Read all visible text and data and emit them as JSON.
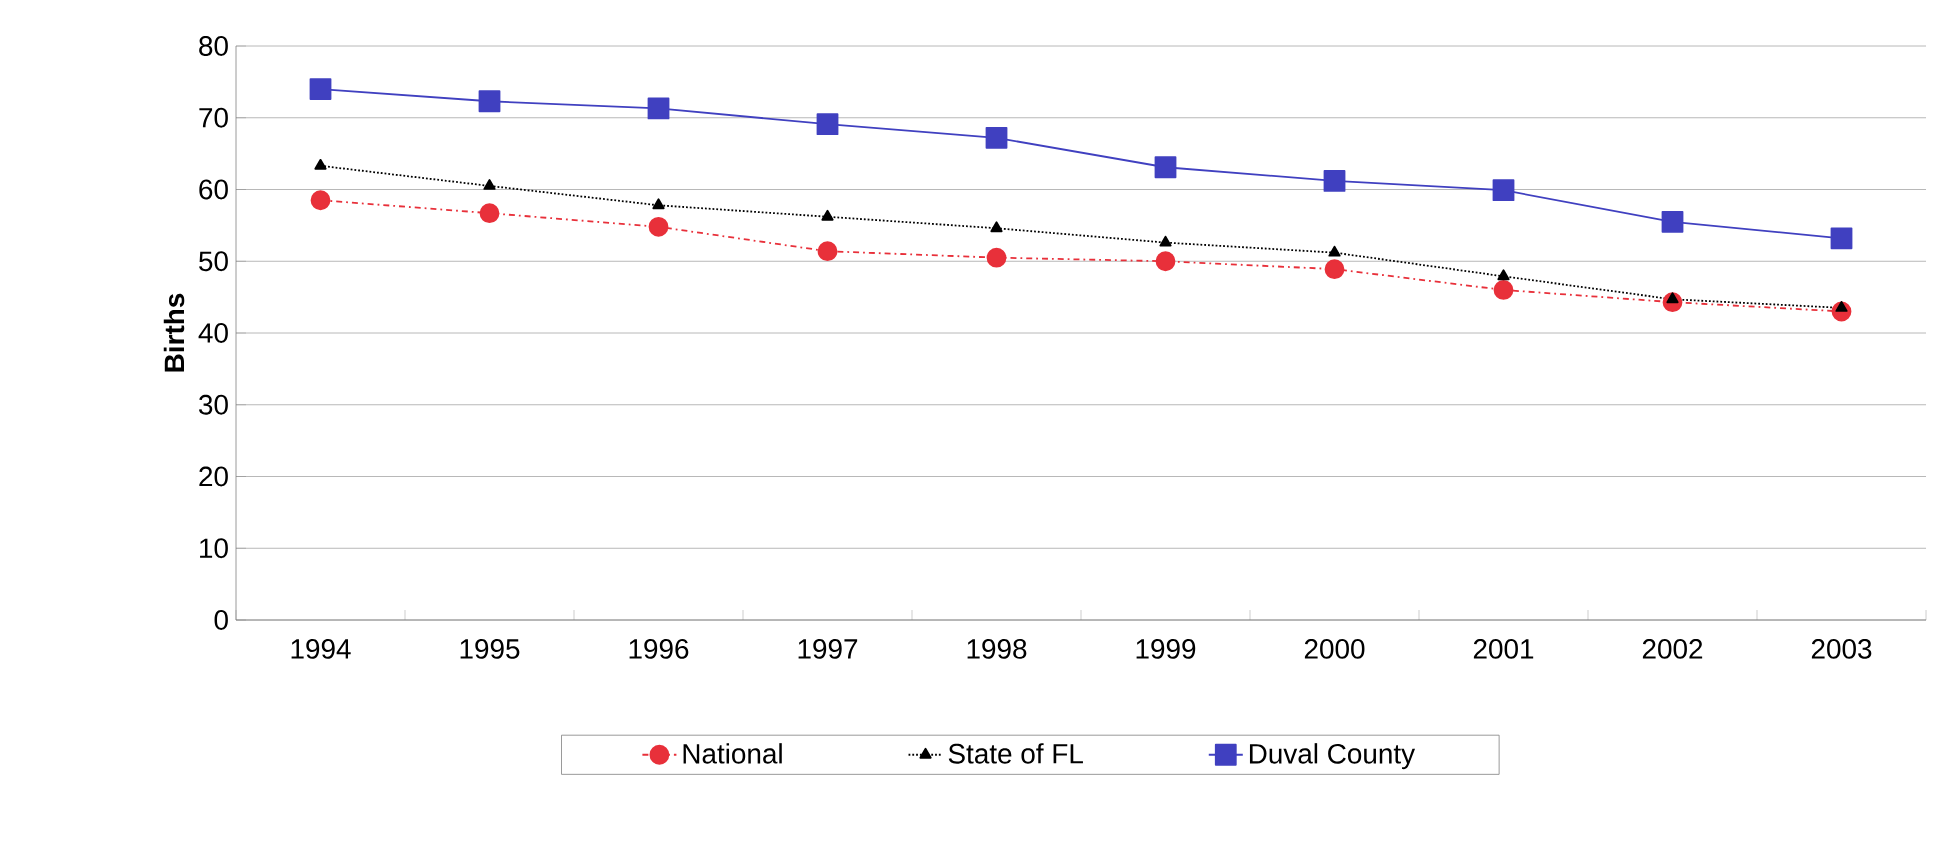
{
  "chart_data": {
    "type": "line",
    "ylabel": "Births",
    "categories": [
      "1994",
      "1995",
      "1996",
      "1997",
      "1998",
      "1999",
      "2000",
      "2001",
      "2002",
      "2003"
    ],
    "series": [
      {
        "name": "National",
        "color": "#e8303a",
        "marker": "circle",
        "line_style": "dashdot",
        "values": [
          58.5,
          56.7,
          54.8,
          51.4,
          50.5,
          50.0,
          48.9,
          46.0,
          44.3,
          43.0
        ]
      },
      {
        "name": "State of FL",
        "color": "#000000",
        "marker": "triangle",
        "line_style": "dotted",
        "values": [
          63.3,
          60.5,
          57.8,
          56.2,
          54.6,
          52.6,
          51.2,
          47.9,
          44.7,
          43.5
        ]
      },
      {
        "name": "Duval County",
        "color": "#4040c0",
        "marker": "square",
        "line_style": "solid",
        "values": [
          74.0,
          72.3,
          71.3,
          69.1,
          67.2,
          63.1,
          61.2,
          59.9,
          55.5,
          53.2
        ]
      }
    ],
    "ylim": [
      0,
      80
    ],
    "yticks": [
      0,
      10,
      20,
      30,
      40,
      50,
      60,
      70,
      80
    ],
    "grid": "y",
    "legend": "bottom"
  }
}
